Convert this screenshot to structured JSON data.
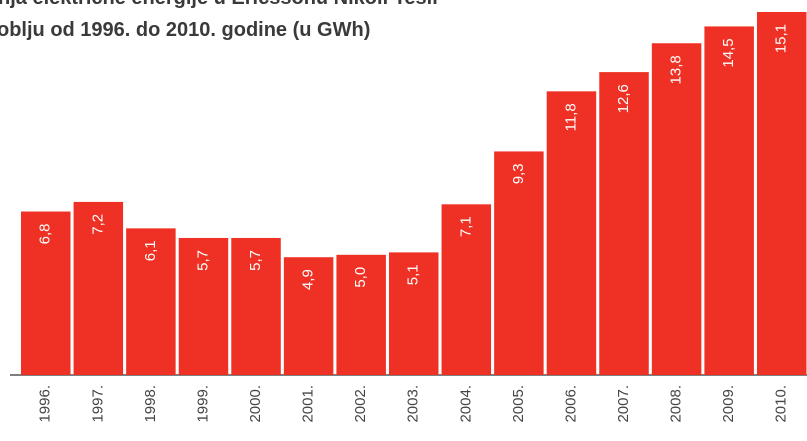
{
  "chart_data": {
    "type": "bar",
    "title_lines": [
      "nja električne energije u Ericssonu Nikoli Tesli",
      "oblju od 1996. do 2010. godine (u GWh)"
    ],
    "categories": [
      "1996.",
      "1997.",
      "1998.",
      "1999.",
      "2000.",
      "2001.",
      "2002.",
      "2003.",
      "2004.",
      "2005.",
      "2006.",
      "2007.",
      "2008.",
      "2009.",
      "2010."
    ],
    "values": [
      6.8,
      7.2,
      6.1,
      5.7,
      5.7,
      4.9,
      5.0,
      5.1,
      7.1,
      9.3,
      11.8,
      12.6,
      13.8,
      14.5,
      15.1
    ],
    "value_labels": [
      "6,8",
      "7,2",
      "6,1",
      "5,7",
      "5,7",
      "4,9",
      "5,0",
      "5,1",
      "7,1",
      "9,3",
      "11,8",
      "12,6",
      "13,8",
      "14,5",
      "15,1"
    ],
    "color": "#ee3124"
  }
}
